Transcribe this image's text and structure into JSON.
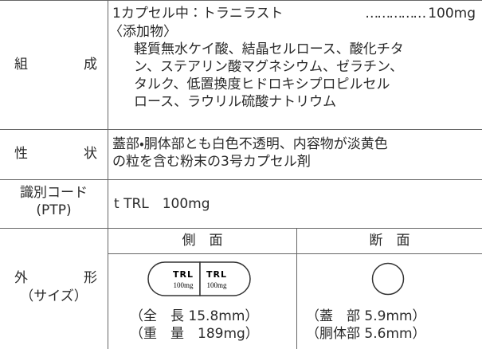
{
  "composition": {
    "label": "組成",
    "ingredient": "1カプセル中：トラニラスト",
    "leader": "……………",
    "amount": "100mg",
    "additives_heading": "〈添加物〉",
    "additives_lines": [
      "軽質無水ケイ酸、結晶セルロース、酸化チタ",
      "ン、ステアリン酸マグネシウム、ゼラチン、",
      "タルク、低置換度ヒドロキシプロピルセル",
      "ロース、ラウリル硫酸ナトリウム"
    ]
  },
  "description": {
    "label": "性状",
    "lines": [
      "蓋部・胴体部とも白色不透明、内容物が淡黄色",
      "の粒を含む粉末の3号カプセル剤"
    ]
  },
  "identification": {
    "label": "識別コード",
    "sublabel": "(PTP)",
    "value": "t TRL　100mg"
  },
  "appearance": {
    "label": "外形",
    "sublabel": "（サイズ）",
    "side_heading": "側　面",
    "section_heading": "断　面",
    "capsule_cap": {
      "top": "TRL",
      "bottom": "100mg"
    },
    "capsule_body": {
      "top": "TRL",
      "bottom": "100mg"
    },
    "side_lines": [
      "（全　長 15.8mm）",
      "（重　量　189mg）"
    ],
    "section_lines": [
      "（蓋　部 5.9mm）",
      "（胴体部 5.6mm）"
    ]
  }
}
